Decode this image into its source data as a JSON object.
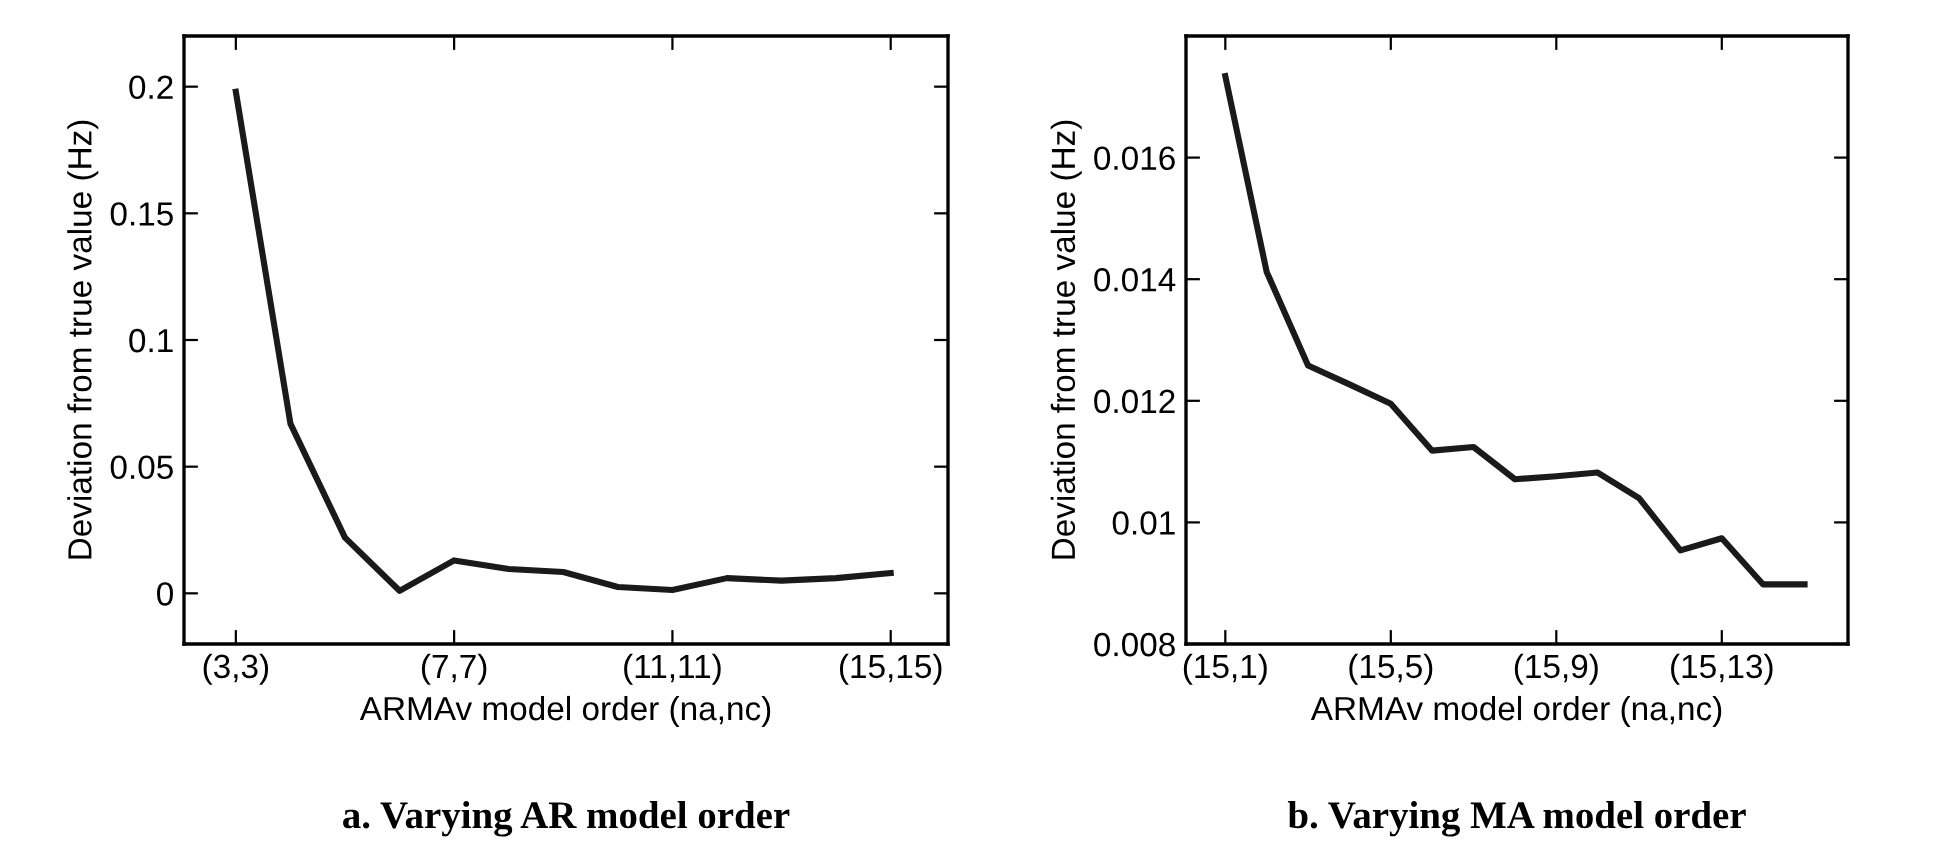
{
  "chart_data": [
    {
      "type": "line",
      "title": "a. Varying AR model order",
      "xlabel": "ARMAv model order (na,nc)",
      "ylabel": "Deviation from true value (Hz)",
      "categories": [
        "(3,3)",
        null,
        null,
        null,
        "(7,7)",
        null,
        null,
        null,
        "(11,11)",
        null,
        null,
        null,
        "(15,15)"
      ],
      "series": [
        {
          "color": "#1a1a1a",
          "values": [
            0.198,
            0.067,
            0.022,
            0.001,
            0.013,
            0.0096,
            0.0084,
            0.0025,
            0.0013,
            0.006,
            0.005,
            0.006,
            0.008
          ]
        }
      ],
      "ylim": [
        -0.02,
        0.22
      ],
      "yticks": [
        0,
        0.05,
        0.1,
        0.15,
        0.2
      ],
      "grid": false,
      "marker": "none",
      "line_style": "solid"
    },
    {
      "type": "line",
      "title": "b. Varying MA model order",
      "xlabel": "ARMAv model order (na,nc)",
      "ylabel": "Deviation from true value (Hz)",
      "categories": [
        "(15,1)",
        null,
        null,
        null,
        "(15,5)",
        null,
        null,
        null,
        "(15,9)",
        null,
        null,
        null,
        "(15,13)",
        null,
        null
      ],
      "series": [
        {
          "color": "#1a1a1a",
          "values": [
            0.01734,
            0.01412,
            0.01258,
            0.01227,
            0.01195,
            0.01118,
            0.01124,
            0.01071,
            0.01076,
            0.01082,
            0.0104,
            0.00954,
            0.00974,
            0.00898,
            0.00898
          ]
        }
      ],
      "ylim": [
        0.008,
        0.018
      ],
      "yticks": [
        0.008,
        0.01,
        0.012,
        0.014,
        0.016
      ],
      "grid": false,
      "marker": "none",
      "line_style": "solid"
    }
  ]
}
